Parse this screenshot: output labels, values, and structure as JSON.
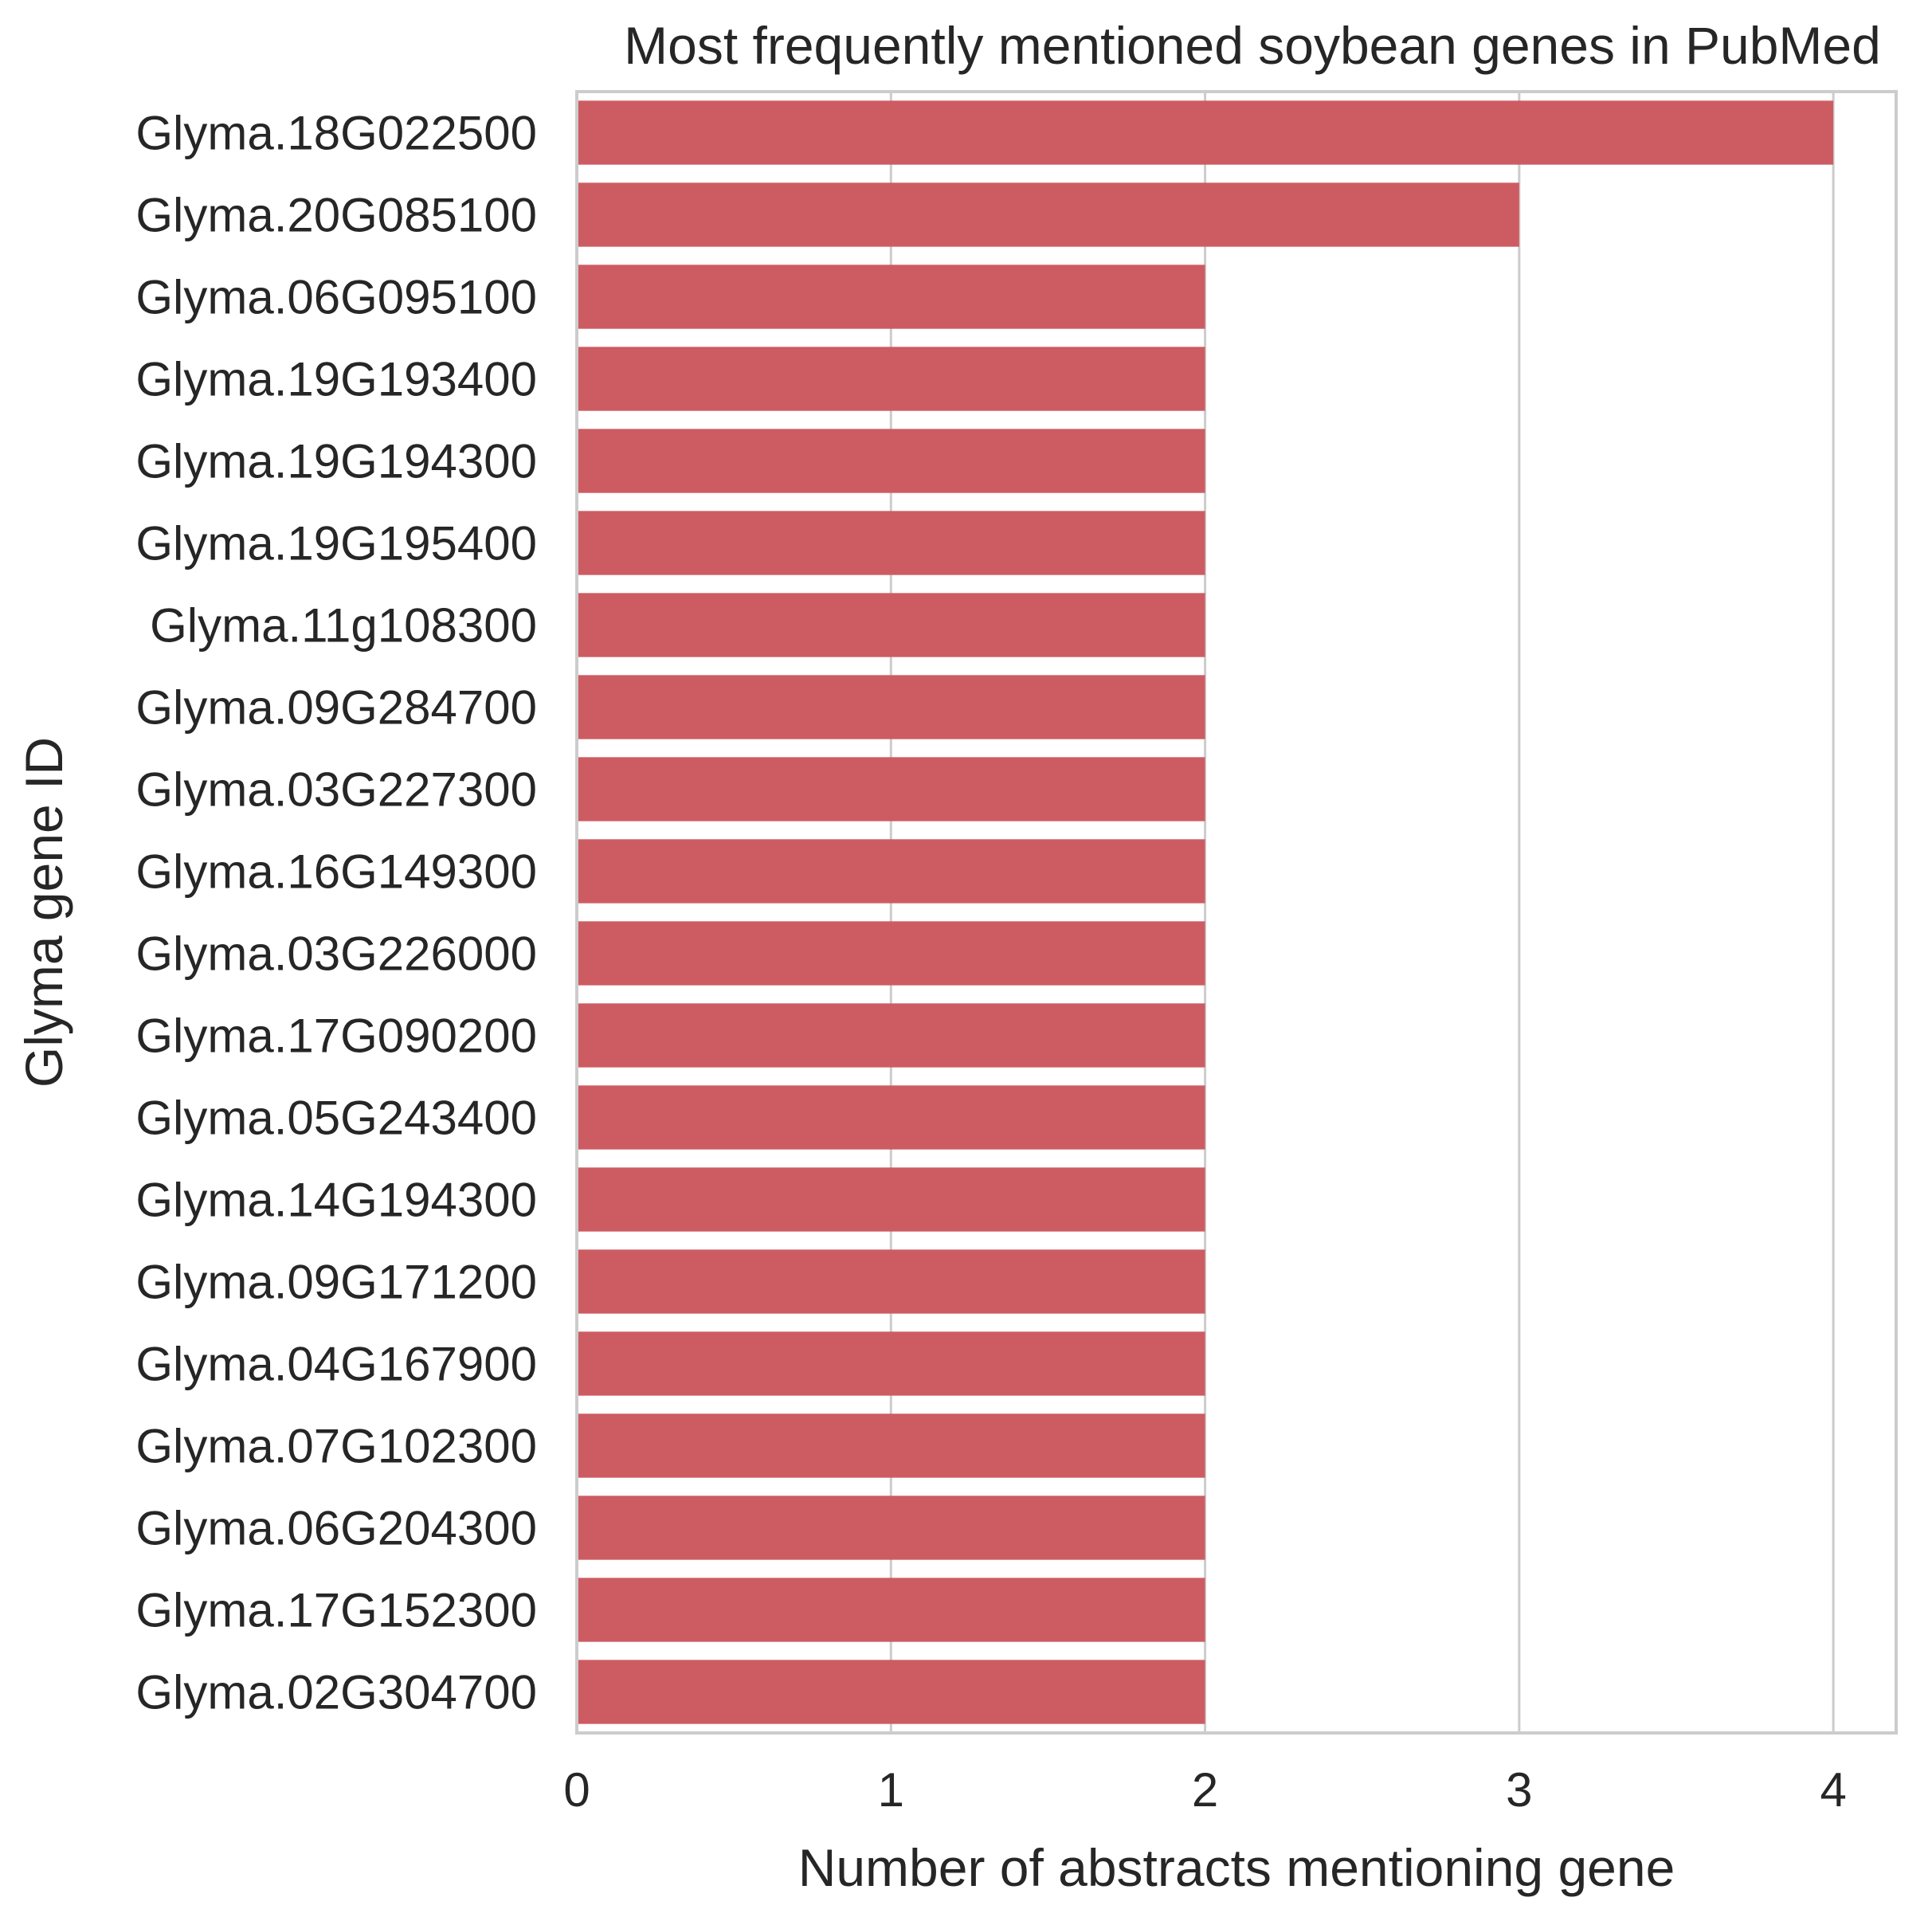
{
  "chart_data": {
    "type": "bar",
    "orientation": "horizontal",
    "title": "Most frequently mentioned soybean genes in PubMed",
    "xlabel": "Number of abstracts mentioning gene",
    "ylabel": "Glyma gene ID",
    "xlim": [
      0,
      4.2
    ],
    "xticks": [
      "0",
      "1",
      "2",
      "3",
      "4"
    ],
    "grid": "x",
    "bar_color": "#cd5c62",
    "categories": [
      "Glyma.18G022500",
      "Glyma.20G085100",
      "Glyma.06G095100",
      "Glyma.19G193400",
      "Glyma.19G194300",
      "Glyma.19G195400",
      "Glyma.11g108300",
      "Glyma.09G284700",
      "Glyma.03G227300",
      "Glyma.16G149300",
      "Glyma.03G226000",
      "Glyma.17G090200",
      "Glyma.05G243400",
      "Glyma.14G194300",
      "Glyma.09G171200",
      "Glyma.04G167900",
      "Glyma.07G102300",
      "Glyma.06G204300",
      "Glyma.17G152300",
      "Glyma.02G304700"
    ],
    "values": [
      4,
      3,
      2,
      2,
      2,
      2,
      2,
      2,
      2,
      2,
      2,
      2,
      2,
      2,
      2,
      2,
      2,
      2,
      2,
      2
    ]
  }
}
